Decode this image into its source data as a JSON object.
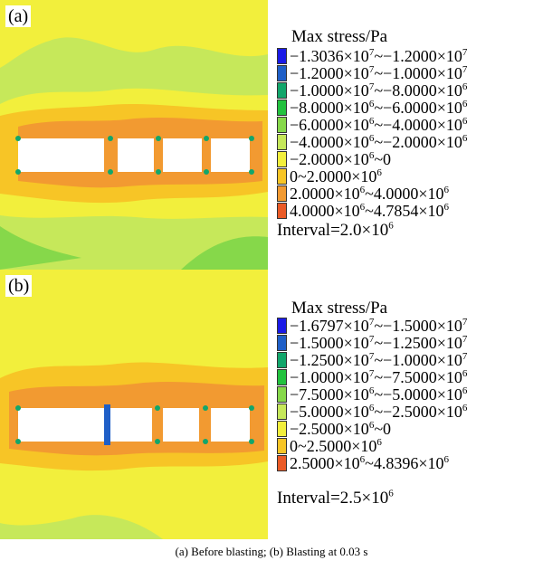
{
  "figure": {
    "caption": "(a) Before blasting; (b) Blasting at 0.03 s",
    "panels": [
      {
        "letter": "(a)",
        "legend_title": "Max stress/Pa",
        "interval": "Interval=2.0×10^6",
        "legend": [
          {
            "label": "−1.3036×10^7~−1.2000×10^7",
            "color": "#1a1ae6"
          },
          {
            "label": "−1.2000×10^7~−1.0000×10^7",
            "color": "#1f5fc7"
          },
          {
            "label": "−1.0000×10^7~−8.0000×10^6",
            "color": "#12a66b"
          },
          {
            "label": "−8.0000×10^6~−6.0000×10^6",
            "color": "#22c23e"
          },
          {
            "label": "−6.0000×10^6~−4.0000×10^6",
            "color": "#86d84a"
          },
          {
            "label": "−4.0000×10^6~−2.0000×10^6",
            "color": "#c6e85a"
          },
          {
            "label": "−2.0000×10^6~0",
            "color": "#f2ef3c"
          },
          {
            "label": "0~2.0000×10^6",
            "color": "#f7c526"
          },
          {
            "label": "2.0000×10^6~4.0000×10^6",
            "color": "#f29a31"
          },
          {
            "label": "4.0000×10^6~4.7854×10^6",
            "color": "#ea5a26"
          }
        ]
      },
      {
        "letter": "(b)",
        "legend_title": "Max stress/Pa",
        "interval": "Interval=2.5×10^6",
        "legend": [
          {
            "label": "−1.6797×10^7~−1.5000×10^7",
            "color": "#1a1ae6"
          },
          {
            "label": "−1.5000×10^7~−1.2500×10^7",
            "color": "#1f5fc7"
          },
          {
            "label": "−1.2500×10^7~−1.0000×10^7",
            "color": "#12a66b"
          },
          {
            "label": "−1.0000×10^7~−7.5000×10^6",
            "color": "#22c23e"
          },
          {
            "label": "−7.5000×10^6~−5.0000×10^6",
            "color": "#86d84a"
          },
          {
            "label": "−5.0000×10^6~−2.5000×10^6",
            "color": "#c6e85a"
          },
          {
            "label": "−2.5000×10^6~0",
            "color": "#f2ef3c"
          },
          {
            "label": "0~2.5000×10^6",
            "color": "#f7c526"
          },
          {
            "label": "2.5000×10^6~4.8396×10^6",
            "color": "#ea5a26"
          }
        ]
      }
    ]
  }
}
